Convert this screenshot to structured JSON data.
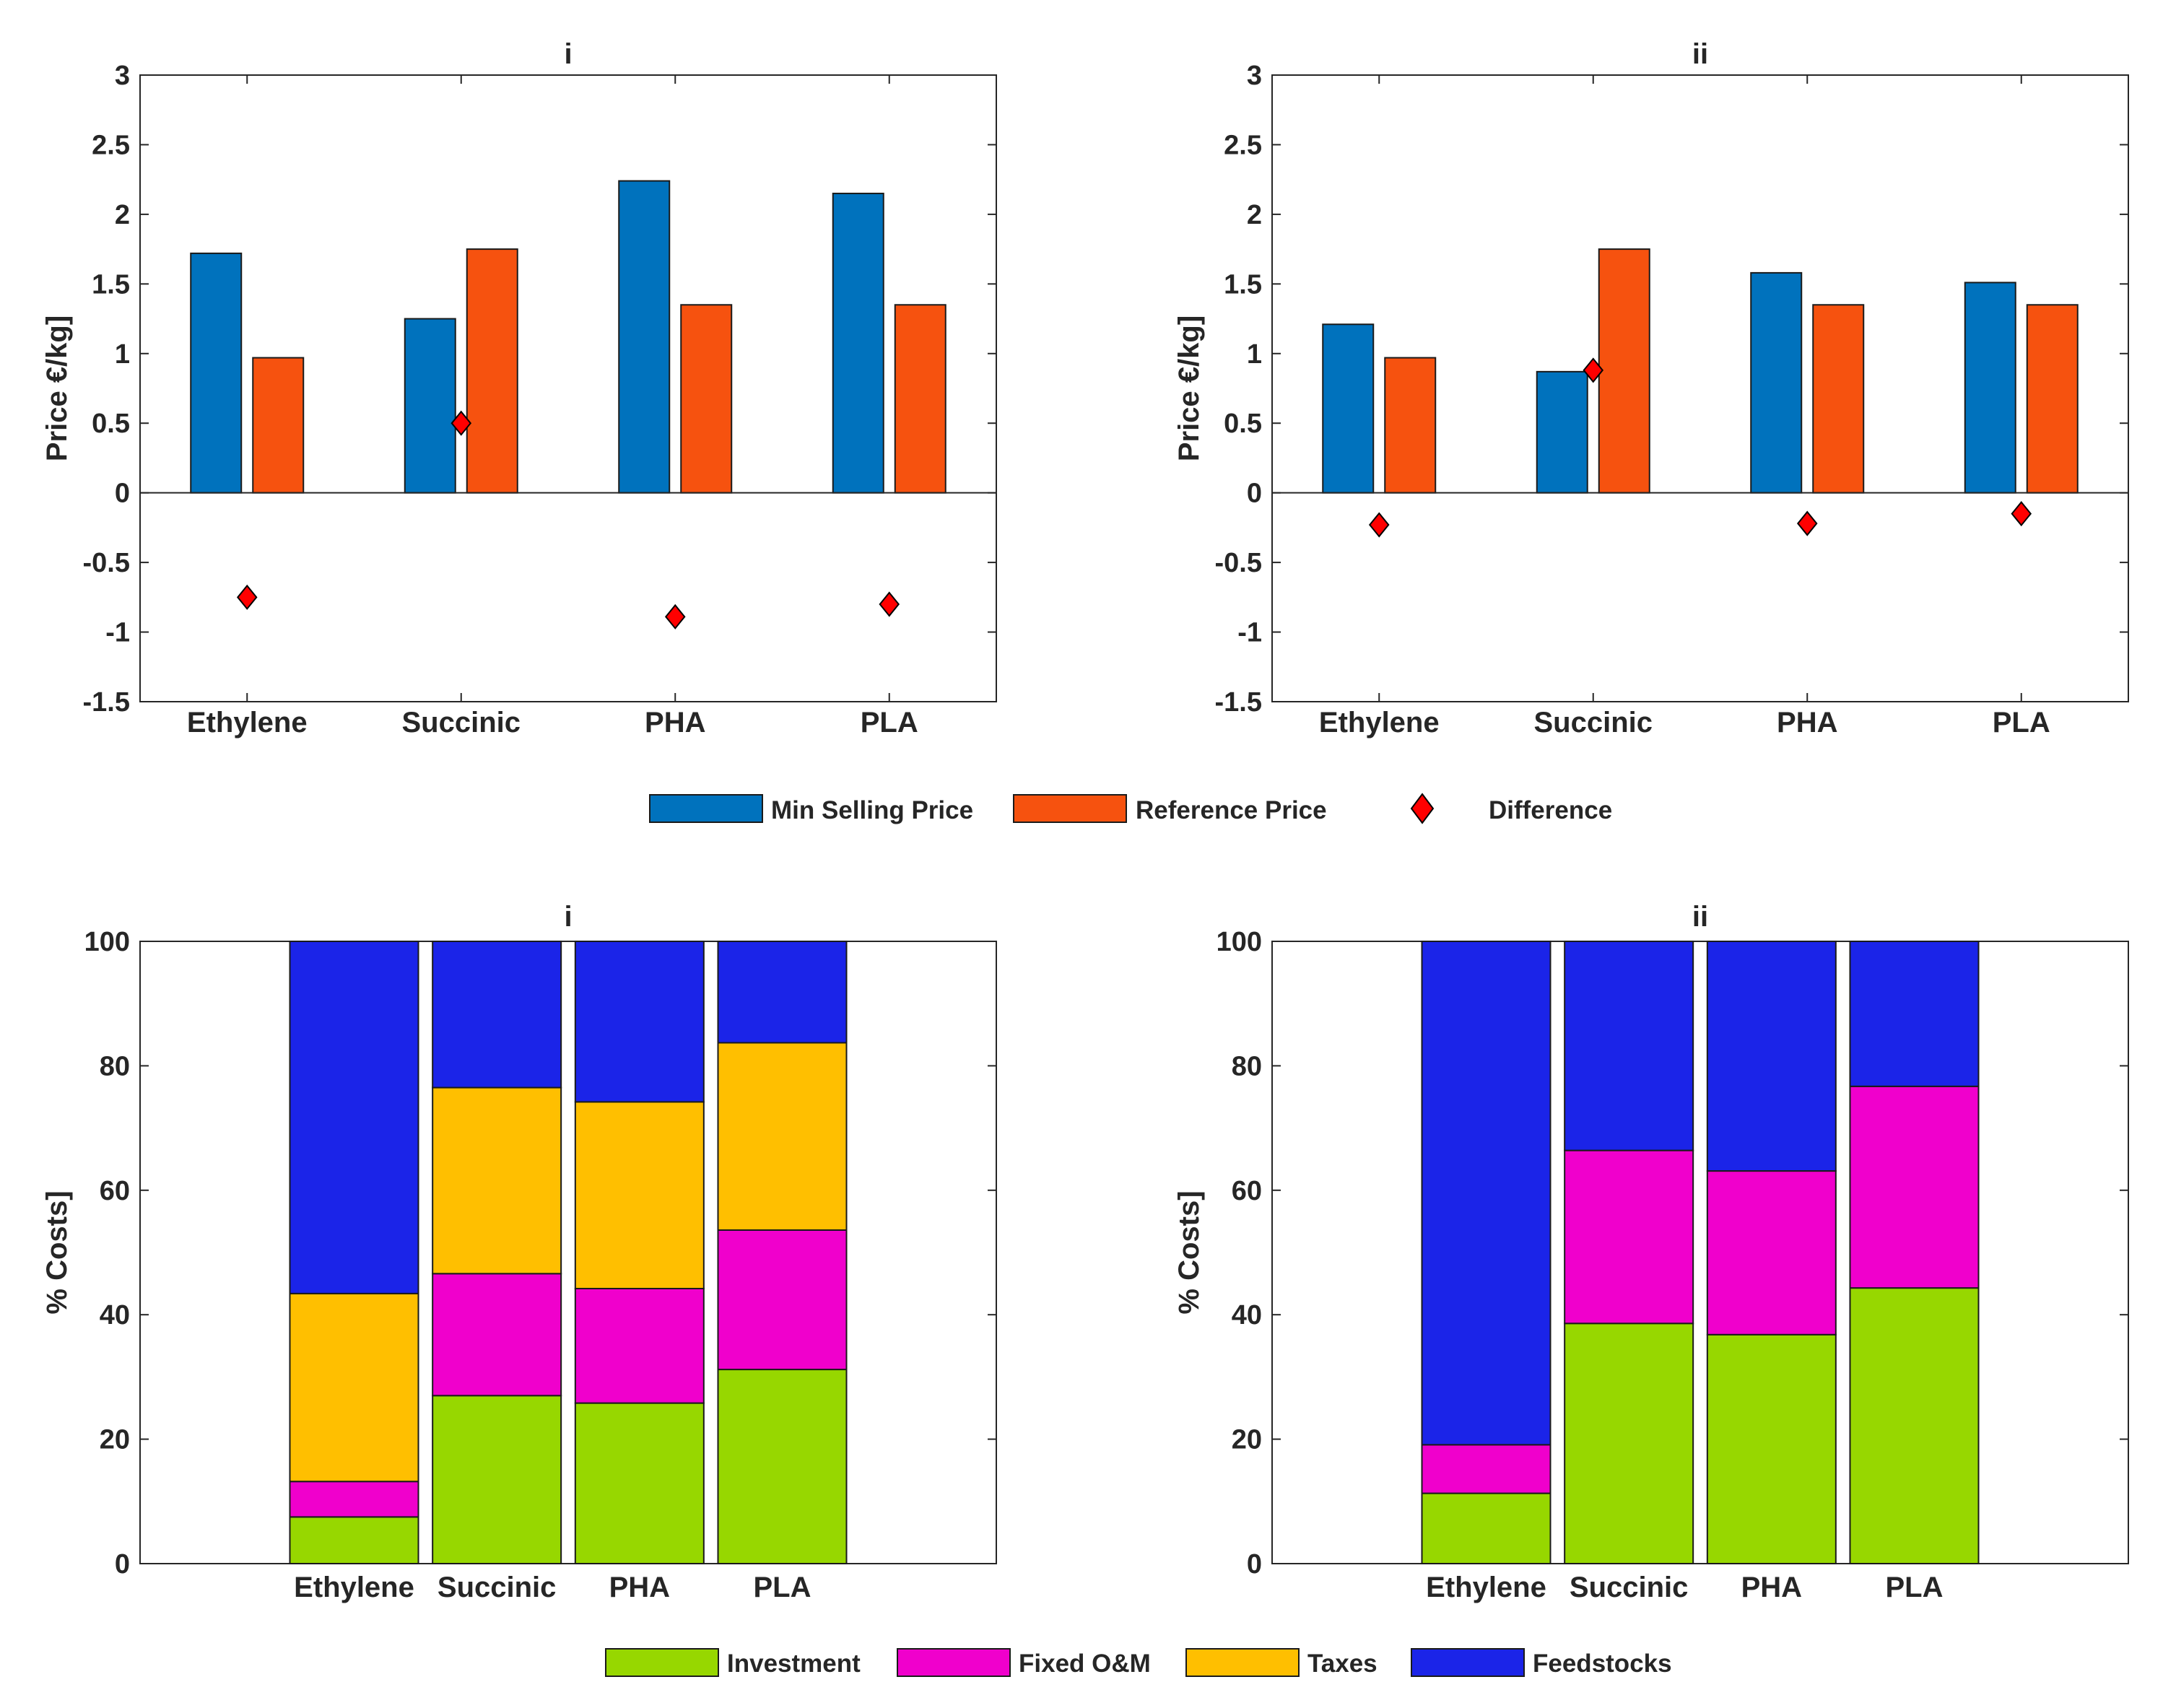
{
  "colors": {
    "min_selling_price": "#0072BD",
    "reference_price": "#F6520F",
    "difference": "#FF0000",
    "investment": "#97D700",
    "fixed_om": "#F000CC",
    "taxes": "#FFBF00",
    "feedstocks": "#1B24E8"
  },
  "chart_data": [
    {
      "type": "bar",
      "title": "i",
      "ylabel": "Price €/kg]",
      "xlabel": "",
      "categories": [
        "Ethylene",
        "Succinic",
        "PHA",
        "PLA"
      ],
      "ylim": [
        -1.5,
        3
      ],
      "yticks": [
        3,
        2.5,
        2,
        1.5,
        1,
        0.5,
        0,
        -0.5,
        -1,
        -1.5
      ],
      "ytick_labels": [
        "3",
        "2.5",
        "2",
        "1.5",
        "1",
        "0.5",
        "0",
        "-0.5",
        "-1",
        "-1.5"
      ],
      "series": [
        {
          "name": "Min Selling Price",
          "values": [
            1.72,
            1.25,
            2.24,
            2.15
          ]
        },
        {
          "name": "Reference Price",
          "values": [
            0.97,
            1.75,
            1.35,
            1.35
          ]
        },
        {
          "name": "Difference",
          "values": [
            -0.75,
            0.5,
            -0.89,
            -0.8
          ]
        }
      ]
    },
    {
      "type": "bar",
      "title": "ii",
      "ylabel": "Price €/kg]",
      "xlabel": "",
      "categories": [
        "Ethylene",
        "Succinic",
        "PHA",
        "PLA"
      ],
      "ylim": [
        -1.5,
        3
      ],
      "yticks": [
        3,
        2.5,
        2,
        1.5,
        1,
        0.5,
        0,
        -0.5,
        -1,
        -1.5
      ],
      "ytick_labels": [
        "3",
        "2.5",
        "2",
        "1.5",
        "1",
        "0.5",
        "0",
        "-0.5",
        "-1",
        "-1.5"
      ],
      "series": [
        {
          "name": "Min Selling Price",
          "values": [
            1.21,
            0.87,
            1.58,
            1.51
          ]
        },
        {
          "name": "Reference Price",
          "values": [
            0.97,
            1.75,
            1.35,
            1.35
          ]
        },
        {
          "name": "Difference",
          "values": [
            -0.23,
            0.88,
            -0.22,
            -0.15
          ]
        }
      ]
    },
    {
      "type": "bar",
      "stacked": true,
      "title": "i",
      "ylabel": "% Costs]",
      "xlabel": "",
      "categories": [
        "Ethylene",
        "Succinic",
        "PHA",
        "PLA"
      ],
      "ylim": [
        0,
        100
      ],
      "yticks": [
        100,
        80,
        60,
        40,
        20,
        0
      ],
      "ytick_labels": [
        "100",
        "80",
        "60",
        "40",
        "20",
        "0"
      ],
      "series": [
        {
          "name": "Investment",
          "values": [
            7.5,
            27,
            25.8,
            31.2
          ]
        },
        {
          "name": "Fixed O&M",
          "values": [
            5.7,
            19.6,
            18.4,
            22.4
          ]
        },
        {
          "name": "Taxes",
          "values": [
            30.2,
            29.9,
            30,
            30.1
          ]
        },
        {
          "name": "Feedstocks",
          "values": [
            56.6,
            23.5,
            25.8,
            16.3
          ]
        }
      ]
    },
    {
      "type": "bar",
      "stacked": true,
      "title": "ii",
      "ylabel": "% Costs]",
      "xlabel": "",
      "categories": [
        "Ethylene",
        "Succinic",
        "PHA",
        "PLA"
      ],
      "ylim": [
        0,
        100
      ],
      "yticks": [
        100,
        80,
        60,
        40,
        20,
        0
      ],
      "ytick_labels": [
        "100",
        "80",
        "60",
        "40",
        "20",
        "0"
      ],
      "series": [
        {
          "name": "Investment",
          "values": [
            11.3,
            38.6,
            36.8,
            44.3
          ]
        },
        {
          "name": "Fixed O&M",
          "values": [
            7.8,
            27.8,
            26.3,
            32.4
          ]
        },
        {
          "name": "Taxes",
          "values": [
            0,
            0,
            0,
            0
          ]
        },
        {
          "name": "Feedstocks",
          "values": [
            80.9,
            33.6,
            36.9,
            23.3
          ]
        }
      ]
    }
  ],
  "legends": {
    "price": [
      "Min Selling Price",
      "Reference Price",
      "Difference"
    ],
    "costs": [
      "Investment",
      "Fixed O&M",
      "Taxes",
      "Feedstocks"
    ]
  }
}
